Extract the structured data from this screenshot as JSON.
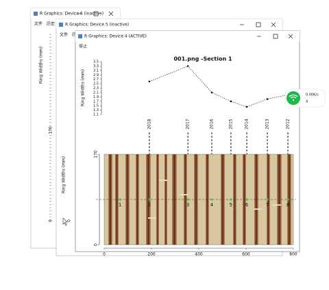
{
  "windows": [
    {
      "title": "R Graphics: Device 6 (inactive)",
      "menu": [
        "文件",
        "历史"
      ],
      "y_label": "Ring Widths (mm)",
      "ticks": [
        "170",
        "0"
      ]
    },
    {
      "title": "R Graphics: Device 5 (inactive)",
      "menu": [
        "文件",
        "历史",
        "停止"
      ],
      "y_label": "Ring Widths (mm)",
      "ticks": [
        "0"
      ]
    },
    {
      "title": "R Graphics: Device 4 (ACTIVE)",
      "menu": [
        "停止"
      ]
    }
  ],
  "plot": {
    "type": "line",
    "title": "001.png -Section 1",
    "y_label": "Ring Widths (mm)",
    "ylim": [
      1.1,
      3.5
    ],
    "yticks": [
      3.5,
      3.3,
      3.1,
      2.9,
      2.7,
      2.5,
      2.3,
      2.1,
      1.9,
      1.7,
      1.5,
      1.3,
      1.1
    ],
    "years": [
      "2018",
      "2017",
      "2016",
      "2015",
      "2014",
      "2013",
      "2012"
    ],
    "values": [
      2.6,
      3.3,
      2.1,
      1.7,
      1.45,
      1.8,
      2.0
    ],
    "image": {
      "xlim": [
        0,
        800
      ],
      "xticks": [
        0,
        200,
        400,
        600,
        800
      ],
      "ylim": [
        0,
        170
      ],
      "yticks": [
        0,
        170
      ],
      "line_y": 85,
      "points": [
        "1",
        "2",
        "3",
        "4",
        "5",
        "6",
        "7",
        "8"
      ],
      "point_x": [
        67,
        191,
        354,
        455,
        536,
        603,
        690,
        777
      ]
    }
  },
  "widget": {
    "speed": "0.00K/s",
    "count": "4"
  }
}
